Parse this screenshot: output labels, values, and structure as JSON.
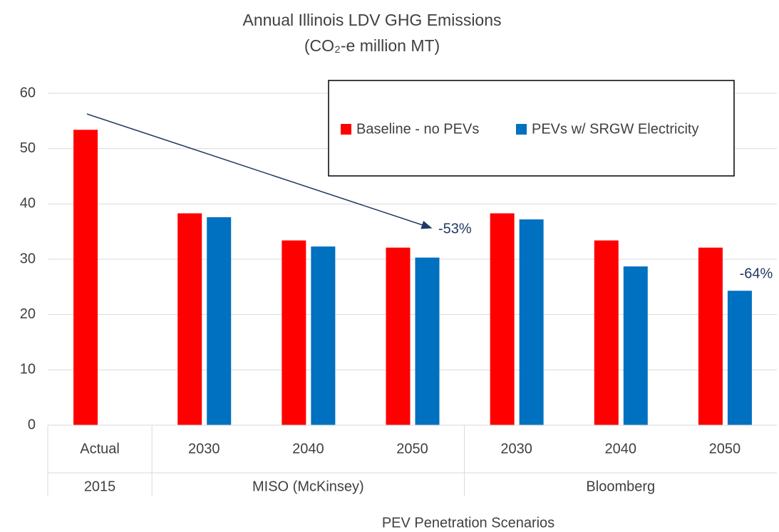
{
  "chart_data": {
    "type": "bar",
    "title": [
      "Annual Illinois LDV GHG Emissions",
      "(CO₂-e million MT)"
    ],
    "x_label": "PEV Penetration Scenarios",
    "groups": [
      {
        "name": "2015",
        "categories": [
          "Actual"
        ]
      },
      {
        "name": "MISO (McKinsey)",
        "categories": [
          "2030",
          "2040",
          "2050"
        ]
      },
      {
        "name": "Bloomberg",
        "categories": [
          "2030",
          "2040",
          "2050"
        ]
      }
    ],
    "series": [
      {
        "name": "Baseline - no PEVs",
        "color": "#ff0000",
        "values": [
          53.4,
          38.3,
          33.4,
          32.1,
          38.3,
          33.4,
          32.1
        ]
      },
      {
        "name": "PEVs w/ SRGW Electricity",
        "color": "#0070c0",
        "values": [
          null,
          37.6,
          32.3,
          30.3,
          37.2,
          28.7,
          24.3
        ]
      }
    ],
    "ylim": [
      0,
      60
    ],
    "yticks": [
      0,
      10,
      20,
      30,
      40,
      50,
      60
    ],
    "grid": true,
    "legend": "top-right",
    "annotations": [
      "-53%",
      "-64%"
    ]
  }
}
